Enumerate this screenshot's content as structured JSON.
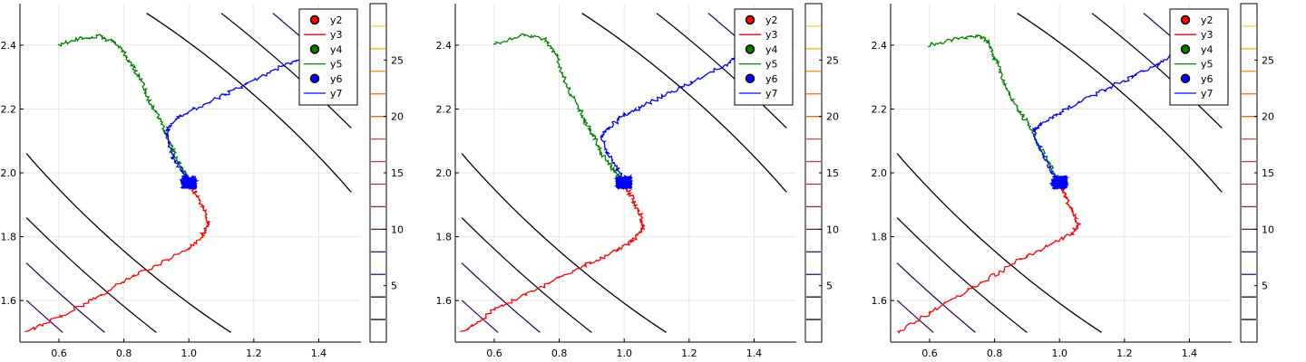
{
  "chart_data": [
    {
      "type": "line",
      "title": "",
      "xlabel": "",
      "ylabel": "",
      "xlim": [
        0.48,
        1.53
      ],
      "ylim": [
        1.47,
        2.53
      ],
      "xticks": [
        "0.6",
        "0.8",
        "1.0",
        "1.2",
        "1.4"
      ],
      "yticks": [
        "1.6",
        "1.8",
        "2.0",
        "2.2",
        "2.4"
      ],
      "grid": true,
      "legend_position": "top-right",
      "legend": [
        "y2",
        "y3",
        "y4",
        "y5",
        "y6",
        "y7"
      ],
      "colorbar": {
        "ticks": [
          "5",
          "10",
          "15",
          "20",
          "25"
        ],
        "range": [
          0,
          30
        ]
      },
      "contours": {
        "levels": [
          2,
          4,
          6,
          8,
          10,
          12,
          14,
          16,
          18,
          20,
          22,
          24,
          26,
          28
        ],
        "colors": [
          "#000000",
          "#0d0829",
          "#2c0b57",
          "#4a0c6b",
          "#6a176e",
          "#8a226a",
          "#a32b61",
          "#bc3754",
          "#d44842",
          "#e55c30",
          "#f1711f",
          "#f98e09",
          "#fcb014",
          "#f7d13d"
        ]
      },
      "series": [
        {
          "name": "y3",
          "color": "#ff0000",
          "kind": "noisy-line",
          "x": [
            0.5,
            0.6,
            0.7,
            0.8,
            0.9,
            1.0,
            1.04,
            1.06,
            1.05,
            1.03,
            1.01,
            1.0
          ],
          "y": [
            1.5,
            1.55,
            1.6,
            1.66,
            1.71,
            1.76,
            1.8,
            1.84,
            1.88,
            1.92,
            1.95,
            1.97
          ]
        },
        {
          "name": "y5",
          "color": "#008000",
          "kind": "noisy-line",
          "x": [
            0.6,
            0.66,
            0.72,
            0.77,
            0.8,
            0.83,
            0.86,
            0.88,
            0.91,
            0.93,
            0.95,
            0.97,
            0.99,
            1.0
          ],
          "y": [
            2.4,
            2.42,
            2.43,
            2.41,
            2.38,
            2.33,
            2.28,
            2.22,
            2.17,
            2.12,
            2.07,
            2.03,
            2.0,
            1.97
          ]
        },
        {
          "name": "y7",
          "color": "#0000ff",
          "kind": "noisy-line",
          "x": [
            1.0,
            0.98,
            0.95,
            0.93,
            0.94,
            0.98,
            1.04,
            1.12,
            1.2,
            1.28,
            1.35
          ],
          "y": [
            1.97,
            2.0,
            2.05,
            2.12,
            2.15,
            2.18,
            2.21,
            2.25,
            2.29,
            2.33,
            2.36
          ]
        },
        {
          "name": "y6",
          "color": "#0000ff",
          "kind": "cluster",
          "center": [
            1.0,
            1.97
          ]
        }
      ]
    },
    {
      "type": "line",
      "title": "",
      "xlabel": "",
      "ylabel": "",
      "xlim": [
        0.48,
        1.53
      ],
      "ylim": [
        1.47,
        2.53
      ],
      "xticks": [
        "0.6",
        "0.8",
        "1.0",
        "1.2",
        "1.4"
      ],
      "yticks": [
        "1.6",
        "1.8",
        "2.0",
        "2.2",
        "2.4"
      ],
      "grid": true,
      "legend_position": "top-right",
      "legend": [
        "y2",
        "y3",
        "y4",
        "y5",
        "y6",
        "y7"
      ],
      "colorbar": {
        "ticks": [
          "5",
          "10",
          "15",
          "20",
          "25"
        ],
        "range": [
          0,
          30
        ]
      },
      "contours": {
        "levels": [
          2,
          4,
          6,
          8,
          10,
          12,
          14,
          16,
          18,
          20,
          22,
          24,
          26,
          28
        ],
        "colors": [
          "#000000",
          "#0d0829",
          "#2c0b57",
          "#4a0c6b",
          "#6a176e",
          "#8a226a",
          "#a32b61",
          "#bc3754",
          "#d44842",
          "#e55c30",
          "#f1711f",
          "#f98e09",
          "#fcb014",
          "#f7d13d"
        ]
      },
      "series": [
        {
          "name": "y3",
          "color": "#ff0000",
          "kind": "noisy-line",
          "x": [
            0.5,
            0.6,
            0.7,
            0.8,
            0.9,
            0.98,
            1.03,
            1.06,
            1.05,
            1.03,
            1.01,
            1.0
          ],
          "y": [
            1.5,
            1.57,
            1.62,
            1.67,
            1.72,
            1.76,
            1.79,
            1.83,
            1.87,
            1.91,
            1.95,
            1.97
          ]
        },
        {
          "name": "y5",
          "color": "#008000",
          "kind": "noisy-line",
          "x": [
            0.6,
            0.68,
            0.76,
            0.79,
            0.81,
            0.83,
            0.86,
            0.88,
            0.91,
            0.93,
            0.96,
            0.98,
            1.0
          ],
          "y": [
            2.4,
            2.43,
            2.42,
            2.37,
            2.31,
            2.26,
            2.21,
            2.16,
            2.11,
            2.06,
            2.02,
            1.99,
            1.97
          ]
        },
        {
          "name": "y7",
          "color": "#0000ff",
          "kind": "noisy-line",
          "x": [
            1.0,
            0.98,
            0.95,
            0.93,
            0.95,
            1.0,
            1.06,
            1.14,
            1.22,
            1.3,
            1.35
          ],
          "y": [
            1.97,
            2.01,
            2.06,
            2.11,
            2.14,
            2.18,
            2.21,
            2.25,
            2.29,
            2.33,
            2.36
          ]
        },
        {
          "name": "y6",
          "color": "#0000ff",
          "kind": "cluster",
          "center": [
            1.0,
            1.97
          ]
        }
      ]
    },
    {
      "type": "line",
      "title": "",
      "xlabel": "",
      "ylabel": "",
      "xlim": [
        0.48,
        1.53
      ],
      "ylim": [
        1.47,
        2.53
      ],
      "xticks": [
        "0.6",
        "0.8",
        "1.0",
        "1.2",
        "1.4"
      ],
      "yticks": [
        "1.6",
        "1.8",
        "2.0",
        "2.2",
        "2.4"
      ],
      "grid": true,
      "legend_position": "top-right",
      "legend": [
        "y2",
        "y3",
        "y4",
        "y5",
        "y6",
        "y7"
      ],
      "colorbar": {
        "ticks": [
          "5",
          "10",
          "15",
          "20",
          "25"
        ],
        "range": [
          0,
          30
        ]
      },
      "contours": {
        "levels": [
          2,
          4,
          6,
          8,
          10,
          12,
          14,
          16,
          18,
          20,
          22,
          24,
          26,
          28
        ],
        "colors": [
          "#000000",
          "#0d0829",
          "#2c0b57",
          "#4a0c6b",
          "#6a176e",
          "#8a226a",
          "#a32b61",
          "#bc3754",
          "#d44842",
          "#e55c30",
          "#f1711f",
          "#f98e09",
          "#fcb014",
          "#f7d13d"
        ]
      },
      "series": [
        {
          "name": "y3",
          "color": "#ff0000",
          "kind": "noisy-line",
          "x": [
            0.5,
            0.6,
            0.7,
            0.8,
            0.9,
            0.98,
            1.04,
            1.06,
            1.04,
            1.02,
            1.01,
            1.0
          ],
          "y": [
            1.5,
            1.56,
            1.62,
            1.68,
            1.74,
            1.78,
            1.81,
            1.84,
            1.88,
            1.92,
            1.95,
            1.97
          ]
        },
        {
          "name": "y5",
          "color": "#008000",
          "kind": "noisy-line",
          "x": [
            0.6,
            0.68,
            0.75,
            0.78,
            0.8,
            0.82,
            0.84,
            0.87,
            0.9,
            0.92,
            0.95,
            0.98,
            1.0
          ],
          "y": [
            2.4,
            2.42,
            2.43,
            2.41,
            2.36,
            2.31,
            2.26,
            2.2,
            2.16,
            2.12,
            2.06,
            2.01,
            1.97
          ]
        },
        {
          "name": "y7",
          "color": "#0000ff",
          "kind": "noisy-line",
          "x": [
            1.0,
            0.98,
            0.95,
            0.92,
            0.94,
            0.99,
            1.06,
            1.14,
            1.22,
            1.3,
            1.35
          ],
          "y": [
            1.97,
            2.0,
            2.05,
            2.13,
            2.15,
            2.18,
            2.22,
            2.26,
            2.3,
            2.34,
            2.37
          ]
        },
        {
          "name": "y6",
          "color": "#0000ff",
          "kind": "cluster",
          "center": [
            1.0,
            1.97
          ]
        }
      ]
    }
  ],
  "legend_colors": {
    "y2": "#ff0000",
    "y3": "#ff0000",
    "y4": "#008000",
    "y5": "#008000",
    "y6": "#0000ff",
    "y7": "#0000ff"
  },
  "legend_kinds": {
    "y2": "marker",
    "y3": "line",
    "y4": "marker",
    "y5": "line",
    "y6": "marker",
    "y7": "line"
  }
}
